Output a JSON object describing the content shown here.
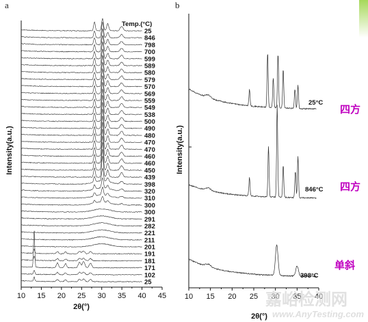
{
  "chart_data": [
    {
      "panel": "a",
      "type": "line",
      "legend_title": "Temp.(°C)",
      "xlabel": "2θ(°)",
      "ylabel": "Intensity(a.u.)",
      "xlim": [
        10,
        45
      ],
      "x_ticks": [
        "10",
        "15",
        "20",
        "25",
        "30",
        "35",
        "40",
        "45"
      ],
      "series_top_to_bottom": [
        "25",
        "846",
        "798",
        "700",
        "599",
        "589",
        "580",
        "579",
        "570",
        "569",
        "559",
        "549",
        "538",
        "500",
        "490",
        "480",
        "470",
        "470",
        "460",
        "460",
        "450",
        "439",
        "398",
        "320",
        "310",
        "300",
        "300",
        "291",
        "282",
        "221",
        "211",
        "201",
        "191",
        "181",
        "171",
        "102",
        "25"
      ],
      "tetragonal_peaks_2theta": [
        28.2,
        30.2,
        31.5,
        34.8,
        35.2
      ],
      "monoclinic_peaks_2theta": [
        13.2,
        19.0,
        21.0,
        24.5,
        25.5,
        27.2
      ]
    },
    {
      "panel": "b",
      "type": "line",
      "xlabel": "2θ(°)",
      "ylabel": "Intensity(a.u.)",
      "xlim": [
        10,
        40
      ],
      "x_ticks": [
        "10",
        "15",
        "20",
        "25",
        "30",
        "35",
        "40"
      ],
      "series": [
        {
          "name": "25°C",
          "phase": "四方",
          "peaks": [
            [
              24.0,
              0.3
            ],
            [
              28.2,
              1.0
            ],
            [
              29.5,
              0.55
            ],
            [
              30.6,
              1.0
            ],
            [
              31.8,
              0.72
            ],
            [
              34.5,
              0.35
            ],
            [
              35.2,
              0.42
            ]
          ]
        },
        {
          "name": "846°C",
          "phase": "四方",
          "peaks": [
            [
              24.0,
              0.2
            ],
            [
              28.4,
              0.55
            ],
            [
              30.4,
              1.0
            ],
            [
              31.8,
              0.35
            ],
            [
              34.6,
              0.28
            ],
            [
              35.2,
              0.45
            ]
          ]
        },
        {
          "name": "398°C",
          "phase": "单斜",
          "peaks": [
            [
              30.3,
              0.75
            ],
            [
              35.0,
              0.25
            ]
          ]
        }
      ]
    }
  ],
  "watermark": {
    "cn": "嘉峪检测网",
    "en": "www.AnyTesting.com"
  },
  "colors": {
    "line": "#2a2a2a",
    "phase_label": "#c000c0",
    "corner_accent": "#b9e27a"
  }
}
